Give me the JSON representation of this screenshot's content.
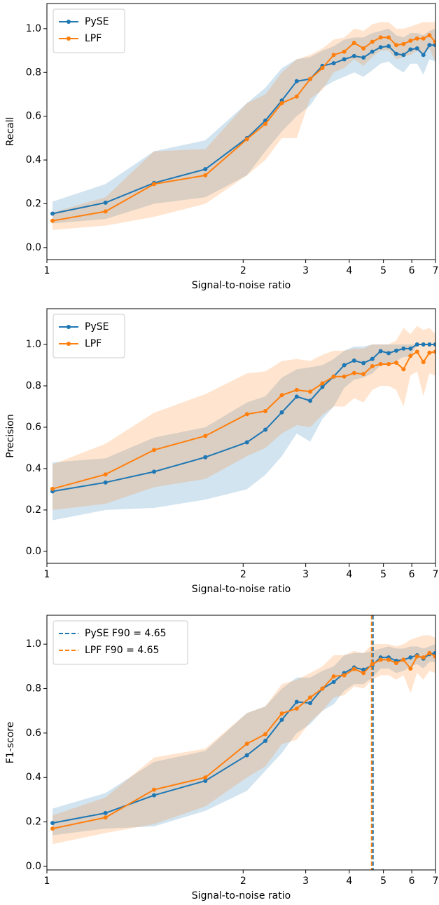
{
  "chart_data": [
    {
      "type": "line",
      "y_label": "Recall",
      "x_label": "Signal-to-noise ratio",
      "xscale": "log",
      "xlim": [
        1,
        7
      ],
      "xticks": [
        1,
        2,
        3,
        4,
        5,
        6,
        7
      ],
      "ylim": [
        -0.055,
        1.115
      ],
      "yticks": [
        {
          "value": 0,
          "label": "0.0"
        },
        0.2,
        0.4,
        0.6,
        0.8,
        {
          "value": 1,
          "label": "1.0"
        }
      ],
      "legend": "upper left",
      "x": [
        1.02,
        1.23,
        1.46,
        1.75,
        2.05,
        2.31,
        2.57,
        2.83,
        3.09,
        3.35,
        3.61,
        3.87,
        4.13,
        4.39,
        4.65,
        4.91,
        5.17,
        5.43,
        5.69,
        5.95,
        6.21,
        6.47,
        6.73,
        6.99
      ],
      "series": [
        {
          "name": "PySE",
          "color": "#1f77b4",
          "values": [
            0.155,
            0.205,
            0.295,
            0.358,
            0.5,
            0.58,
            0.672,
            0.76,
            0.77,
            0.83,
            0.842,
            0.86,
            0.875,
            0.868,
            0.895,
            0.915,
            0.92,
            0.885,
            0.88,
            0.905,
            0.91,
            0.88,
            0.925,
            0.925
          ],
          "lower": [
            0.11,
            0.13,
            0.2,
            0.23,
            0.33,
            0.44,
            0.53,
            0.6,
            0.65,
            0.73,
            0.76,
            0.78,
            0.8,
            0.78,
            0.81,
            0.84,
            0.85,
            0.82,
            0.8,
            0.84,
            0.84,
            0.79,
            0.86,
            0.85
          ],
          "upper": [
            0.21,
            0.29,
            0.44,
            0.49,
            0.66,
            0.73,
            0.82,
            0.86,
            0.87,
            0.9,
            0.92,
            0.95,
            0.96,
            0.96,
            0.98,
            0.99,
            1.0,
            0.97,
            0.96,
            0.98,
            0.98,
            0.97,
            0.99,
            1.0
          ]
        },
        {
          "name": "LPF",
          "color": "#ff7f0e",
          "values": [
            0.122,
            0.165,
            0.29,
            0.33,
            0.495,
            0.565,
            0.66,
            0.69,
            0.77,
            0.82,
            0.88,
            0.895,
            0.935,
            0.91,
            0.94,
            0.96,
            0.96,
            0.925,
            0.93,
            0.945,
            0.955,
            0.955,
            0.97,
            0.94
          ],
          "lower": [
            0.08,
            0.1,
            0.14,
            0.2,
            0.33,
            0.4,
            0.5,
            0.5,
            0.68,
            0.72,
            0.8,
            0.82,
            0.86,
            0.83,
            0.87,
            0.9,
            0.9,
            0.86,
            0.87,
            0.88,
            0.9,
            0.88,
            0.91,
            0.85
          ],
          "upper": [
            0.16,
            0.23,
            0.44,
            0.45,
            0.66,
            0.7,
            0.8,
            0.86,
            0.88,
            0.91,
            0.95,
            0.96,
            1.0,
            0.99,
            1.02,
            1.03,
            1.03,
            1.0,
            1.0,
            1.01,
            1.02,
            1.03,
            1.03,
            1.03
          ]
        }
      ]
    },
    {
      "type": "line",
      "y_label": "Precision",
      "x_label": "Signal-to-noise ratio",
      "xscale": "log",
      "xlim": [
        1,
        7
      ],
      "xticks": [
        1,
        2,
        3,
        4,
        5,
        6,
        7
      ],
      "ylim": [
        -0.058,
        1.173
      ],
      "yticks": [
        {
          "value": 0,
          "label": "0.0"
        },
        0.2,
        0.4,
        0.6,
        0.8,
        {
          "value": 1,
          "label": "1.0"
        }
      ],
      "legend": "upper left",
      "x": [
        1.02,
        1.23,
        1.46,
        1.75,
        2.05,
        2.31,
        2.57,
        2.83,
        3.09,
        3.35,
        3.61,
        3.87,
        4.13,
        4.39,
        4.65,
        4.91,
        5.17,
        5.43,
        5.69,
        5.95,
        6.21,
        6.47,
        6.73,
        6.99
      ],
      "series": [
        {
          "name": "PySE",
          "color": "#1f77b4",
          "values": [
            0.29,
            0.333,
            0.385,
            0.455,
            0.527,
            0.588,
            0.672,
            0.748,
            0.728,
            0.795,
            0.845,
            0.9,
            0.922,
            0.91,
            0.93,
            0.968,
            0.958,
            0.97,
            0.98,
            0.98,
            1.0,
            1.0,
            1.0,
            1.0
          ],
          "lower": [
            0.15,
            0.2,
            0.21,
            0.25,
            0.3,
            0.37,
            0.46,
            0.57,
            0.53,
            0.64,
            0.7,
            0.79,
            0.83,
            0.84,
            0.86,
            0.9,
            0.9,
            0.92,
            0.94,
            0.94,
            1.0,
            1.0,
            1.0,
            1.0
          ],
          "upper": [
            0.43,
            0.45,
            0.55,
            0.6,
            0.72,
            0.75,
            0.84,
            0.88,
            0.89,
            0.9,
            0.93,
            0.97,
            0.99,
            0.99,
            1.0,
            1.0,
            1.0,
            1.0,
            1.0,
            1.0,
            1.0,
            1.0,
            1.0,
            1.0
          ]
        },
        {
          "name": "LPF",
          "color": "#ff7f0e",
          "values": [
            0.302,
            0.372,
            0.49,
            0.558,
            0.663,
            0.678,
            0.755,
            0.78,
            0.772,
            0.812,
            0.845,
            0.845,
            0.862,
            0.857,
            0.895,
            0.905,
            0.905,
            0.912,
            0.88,
            0.945,
            0.965,
            0.915,
            0.96,
            0.965
          ],
          "lower": [
            0.2,
            0.23,
            0.31,
            0.35,
            0.46,
            0.5,
            0.57,
            0.61,
            0.6,
            0.66,
            0.7,
            0.7,
            0.74,
            0.72,
            0.78,
            0.8,
            0.8,
            0.78,
            0.7,
            0.85,
            0.87,
            0.75,
            0.86,
            0.85
          ],
          "upper": [
            0.42,
            0.52,
            0.67,
            0.76,
            0.86,
            0.87,
            0.92,
            0.93,
            0.92,
            0.95,
            0.97,
            0.97,
            0.98,
            0.98,
            1.0,
            1.0,
            1.0,
            1.02,
            1.08,
            1.05,
            1.09,
            1.07,
            1.08,
            1.05
          ]
        }
      ]
    },
    {
      "type": "line",
      "y_label": "F1-score",
      "x_label": "Signal-to-noise ratio",
      "xscale": "log",
      "xlim": [
        1,
        7
      ],
      "xticks": [
        1,
        2,
        3,
        4,
        5,
        6,
        7
      ],
      "ylim": [
        -0.016,
        1.13
      ],
      "yticks": [
        {
          "value": 0,
          "label": "0.0"
        },
        0.2,
        0.4,
        0.6,
        0.8,
        {
          "value": 1,
          "label": "1.0"
        }
      ],
      "legend": "upper left",
      "x": [
        1.02,
        1.23,
        1.46,
        1.75,
        2.05,
        2.31,
        2.57,
        2.83,
        3.09,
        3.35,
        3.61,
        3.87,
        4.13,
        4.39,
        4.65,
        4.91,
        5.17,
        5.43,
        5.69,
        5.95,
        6.21,
        6.47,
        6.73,
        6.99
      ],
      "series": [
        {
          "name": "PySE",
          "color": "#1f77b4",
          "values": [
            0.195,
            0.24,
            0.32,
            0.385,
            0.5,
            0.565,
            0.66,
            0.74,
            0.735,
            0.8,
            0.83,
            0.87,
            0.895,
            0.885,
            0.905,
            0.94,
            0.94,
            0.925,
            0.93,
            0.94,
            0.95,
            0.935,
            0.955,
            0.96
          ],
          "lower": [
            0.14,
            0.17,
            0.18,
            0.25,
            0.34,
            0.43,
            0.51,
            0.6,
            0.64,
            0.7,
            0.73,
            0.79,
            0.82,
            0.82,
            0.85,
            0.89,
            0.89,
            0.87,
            0.88,
            0.9,
            0.91,
            0.89,
            0.92,
            0.92
          ],
          "upper": [
            0.26,
            0.33,
            0.47,
            0.52,
            0.69,
            0.72,
            0.8,
            0.85,
            0.85,
            0.88,
            0.9,
            0.95,
            0.96,
            0.96,
            0.97,
            0.98,
            0.99,
            0.98,
            0.98,
            0.99,
            0.99,
            0.98,
            0.99,
            1.0
          ]
        },
        {
          "name": "LPF",
          "color": "#ff7f0e",
          "values": [
            0.17,
            0.22,
            0.345,
            0.4,
            0.552,
            0.595,
            0.688,
            0.71,
            0.76,
            0.8,
            0.855,
            0.86,
            0.888,
            0.87,
            0.91,
            0.93,
            0.93,
            0.915,
            0.93,
            0.89,
            0.945,
            0.94,
            0.96,
            0.945
          ],
          "lower": [
            0.1,
            0.15,
            0.19,
            0.27,
            0.4,
            0.45,
            0.55,
            0.57,
            0.65,
            0.7,
            0.76,
            0.77,
            0.81,
            0.8,
            0.84,
            0.86,
            0.86,
            0.84,
            0.86,
            0.78,
            0.87,
            0.84,
            0.88,
            0.87
          ],
          "upper": [
            0.23,
            0.31,
            0.49,
            0.53,
            0.69,
            0.72,
            0.82,
            0.84,
            0.87,
            0.9,
            0.95,
            0.95,
            0.97,
            0.96,
            1.0,
            1.0,
            1.0,
            0.99,
            1.0,
            1.02,
            1.03,
            1.04,
            1.04,
            1.03
          ]
        }
      ],
      "vlines": [
        {
          "name": "PySE F90 = 4.65",
          "color": "#1f77b4",
          "value": 4.65
        },
        {
          "name": "LPF F90 = 4.65",
          "color": "#ff7f0e",
          "value": 4.65
        }
      ]
    }
  ]
}
